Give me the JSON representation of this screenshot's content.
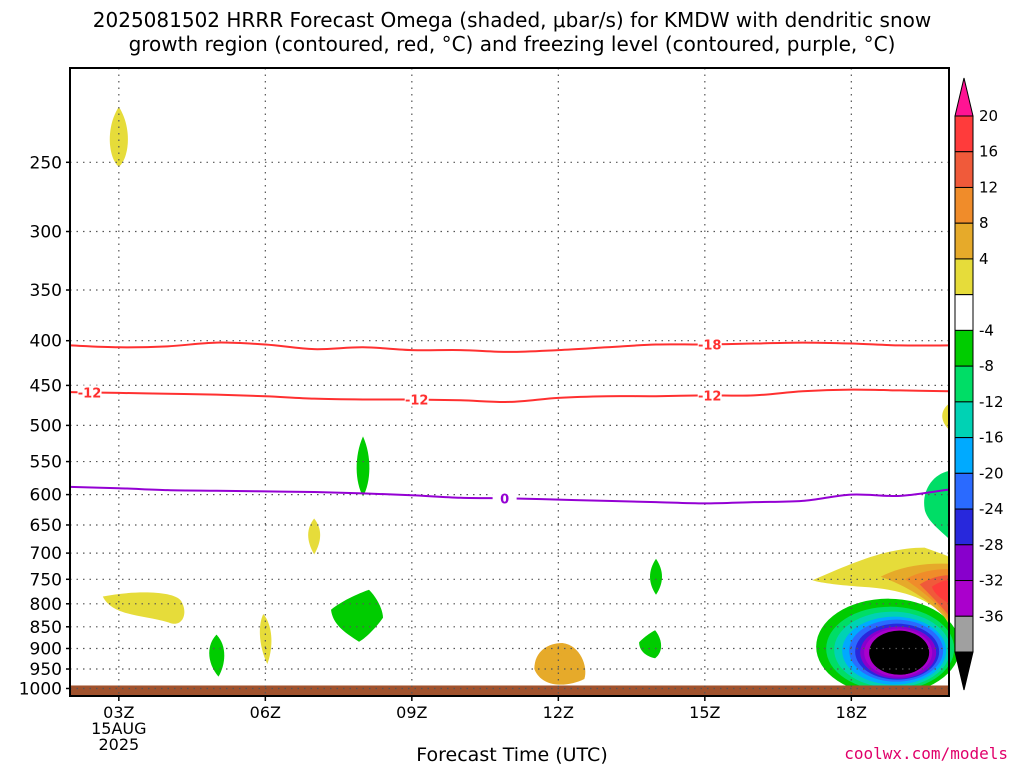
{
  "header": {
    "title_line1": "2025081502 HRRR Forecast Omega (shaded, μbar/s) for KMDW with dendritic snow",
    "title_line2": "growth region (contoured, red, °C) and freezing level (contoured, purple, °C)"
  },
  "footer": {
    "credit": "coolwx.com/models"
  },
  "chart_data": {
    "type": "heatmap",
    "title": "2025081502 HRRR Forecast Omega (shaded, μbar/s) for KMDW with dendritic snow growth region (contoured, red, °C) and freezing level (contoured, purple, °C)",
    "xlabel": "Forecast Time (UTC)",
    "ylabel": "",
    "x_unit": "hours UTC, 15 Aug 2025",
    "xlim": [
      2,
      20
    ],
    "ylim_hPa": [
      1020,
      195
    ],
    "y_ticks": [
      250,
      300,
      350,
      400,
      450,
      500,
      550,
      600,
      650,
      700,
      750,
      800,
      850,
      900,
      950,
      1000
    ],
    "x_ticks": [
      {
        "x": 3,
        "label": "03Z",
        "sub1": "15AUG",
        "sub2": "2025"
      },
      {
        "x": 6,
        "label": "06Z"
      },
      {
        "x": 9,
        "label": "09Z"
      },
      {
        "x": 12,
        "label": "12Z"
      },
      {
        "x": 15,
        "label": "15Z"
      },
      {
        "x": 18,
        "label": "18Z"
      }
    ],
    "grid": true,
    "colorbar": {
      "unit": "μbar/s",
      "bins": [
        {
          "color": "#ff1493",
          "label": ""
        },
        {
          "color": "#ff3b3b",
          "label": "20"
        },
        {
          "color": "#f05a3a",
          "label": "16"
        },
        {
          "color": "#f08c2a",
          "label": "12"
        },
        {
          "color": "#e6aa2a",
          "label": "8"
        },
        {
          "color": "#e6dc3a",
          "label": "4"
        },
        {
          "color": "#ffffff",
          "label": ""
        },
        {
          "color": "#00cc00",
          "label": "-4"
        },
        {
          "color": "#00dd66",
          "label": "-8"
        },
        {
          "color": "#00d2b4",
          "label": "-12"
        },
        {
          "color": "#00aaff",
          "label": "-16"
        },
        {
          "color": "#2a6aff",
          "label": "-20"
        },
        {
          "color": "#2828dc",
          "label": "-24"
        },
        {
          "color": "#8800cc",
          "label": "-28"
        },
        {
          "color": "#aa00cc",
          "label": "-32"
        },
        {
          "color": "#a0a0a0",
          "label": "-36"
        },
        {
          "color": "#000000",
          "label": ""
        }
      ]
    },
    "contours": [
      {
        "name": "-18",
        "color": "#ff3030",
        "label": "-18",
        "label_x": 15.1,
        "points": [
          [
            2,
            405
          ],
          [
            3,
            407
          ],
          [
            4,
            406
          ],
          [
            5,
            402
          ],
          [
            6,
            404
          ],
          [
            7,
            409
          ],
          [
            8,
            407
          ],
          [
            9,
            410
          ],
          [
            10,
            410
          ],
          [
            11,
            412
          ],
          [
            12,
            410
          ],
          [
            13,
            407
          ],
          [
            14,
            404
          ],
          [
            15,
            404
          ],
          [
            16,
            403
          ],
          [
            17,
            402
          ],
          [
            18,
            403
          ],
          [
            19,
            405
          ],
          [
            20,
            405
          ]
        ]
      },
      {
        "name": "-12",
        "color": "#ff3030",
        "label": "-12",
        "label_x": 2.4,
        "points": [
          [
            2,
            458
          ],
          [
            3,
            459
          ],
          [
            4,
            460
          ],
          [
            5,
            461
          ],
          [
            6,
            463
          ],
          [
            7,
            466
          ],
          [
            8,
            467
          ],
          [
            9,
            467
          ],
          [
            10,
            468
          ],
          [
            11,
            470
          ],
          [
            12,
            465
          ],
          [
            13,
            463
          ],
          [
            14,
            463
          ],
          [
            15,
            462
          ],
          [
            16,
            462
          ],
          [
            17,
            457
          ],
          [
            18,
            455
          ],
          [
            19,
            456
          ],
          [
            20,
            457
          ]
        ],
        "extra_labels_x": [
          9.1,
          15.1
        ]
      },
      {
        "name": "0",
        "color": "#9400d3",
        "label": "0",
        "label_x": 10.9,
        "points": [
          [
            2,
            588
          ],
          [
            3,
            590
          ],
          [
            4,
            593
          ],
          [
            5,
            594
          ],
          [
            6,
            595
          ],
          [
            7,
            596
          ],
          [
            8,
            598
          ],
          [
            9,
            601
          ],
          [
            10,
            605
          ],
          [
            11,
            606
          ],
          [
            12,
            608
          ],
          [
            13,
            610
          ],
          [
            14,
            612
          ],
          [
            15,
            614
          ],
          [
            16,
            612
          ],
          [
            17,
            610
          ],
          [
            18,
            600
          ],
          [
            19,
            602
          ],
          [
            20,
            592
          ]
        ]
      }
    ],
    "omega_features": [
      {
        "name": "yellow-blob-250",
        "value": 4,
        "x": 3.0,
        "y": 240
      },
      {
        "name": "yellow-blob-810",
        "value": 4,
        "x": 3.9,
        "y": 810
      },
      {
        "name": "green-blob-560",
        "value": -4,
        "x": 8.0,
        "y": 560
      },
      {
        "name": "green-blob-830",
        "value": -4,
        "x": 8.0,
        "y": 830
      },
      {
        "name": "yellow-blob-670",
        "value": 4,
        "x": 7.0,
        "y": 670
      },
      {
        "name": "green-blob-910",
        "value": -4,
        "x": 5.0,
        "y": 910
      },
      {
        "name": "yellow-blob-880",
        "value": 4,
        "x": 6.0,
        "y": 880
      },
      {
        "name": "yellow-orange-blob-930",
        "value": 8,
        "x": 12.0,
        "y": 930
      },
      {
        "name": "green-blob-745",
        "value": -4,
        "x": 14.0,
        "y": 745
      },
      {
        "name": "green-blob-890",
        "value": -4,
        "x": 13.9,
        "y": 890
      },
      {
        "name": "strong-downward-motion",
        "value": -36,
        "x": 19.0,
        "y": 910
      },
      {
        "name": "strong-upward-motion",
        "value": 20,
        "x": 19.8,
        "y": 770
      },
      {
        "name": "green-blob-610",
        "value": -8,
        "x": 19.8,
        "y": 610
      },
      {
        "name": "yellow-blob-490",
        "value": 4,
        "x": 19.9,
        "y": 490
      }
    ],
    "ground": {
      "color": "#a0522d",
      "pressure": 1000
    }
  }
}
